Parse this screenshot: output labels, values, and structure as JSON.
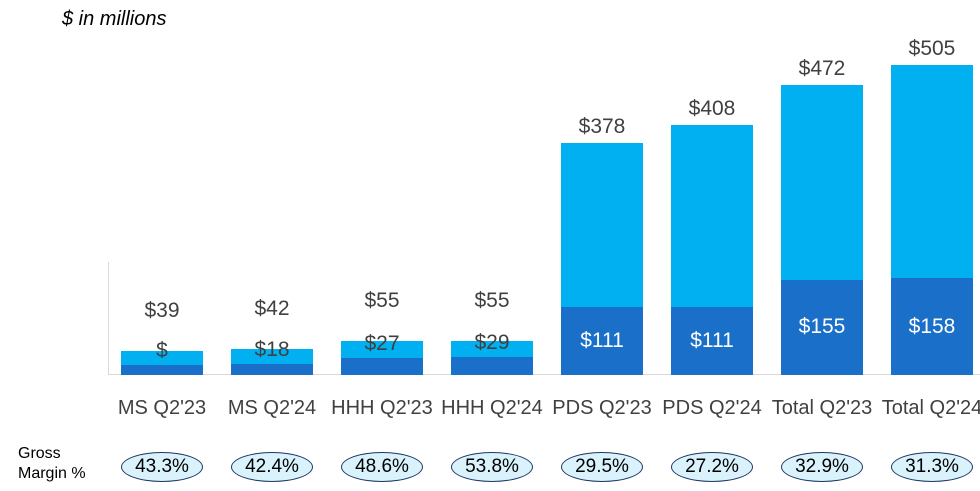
{
  "chart_data": {
    "type": "stacked_bar",
    "subtitle": "$ in millions",
    "categories": [
      "MS Q2'23",
      "MS Q2'24",
      "HHH Q2'23",
      "HHH Q2'24",
      "PDS Q2'23",
      "PDS Q2'24",
      "Total Q2'23",
      "Total Q2'24"
    ],
    "series": [
      {
        "color": "#1a6fc9",
        "values": [
          17,
          18,
          27,
          29,
          111,
          111,
          155,
          158
        ],
        "value_labels": [
          "$",
          "$18",
          "$27",
          "$29",
          "$111",
          "$111",
          "$155",
          "$158"
        ]
      },
      {
        "color": "#00b0f0",
        "values": [
          22,
          24,
          28,
          26,
          267,
          297,
          317,
          347
        ]
      }
    ],
    "totals": [
      39,
      42,
      55,
      55,
      378,
      408,
      472,
      505
    ],
    "total_labels": [
      "$39",
      "$42",
      "$55",
      "$55",
      "$378",
      "$408",
      "$472",
      "$505"
    ],
    "margin_title": "Gross Margin %",
    "margins": [
      43.3,
      42.4,
      48.6,
      53.8,
      29.5,
      27.2,
      32.9,
      31.3
    ],
    "margin_labels": [
      "43.3%",
      "42.4%",
      "48.6%",
      "53.8%",
      "29.5%",
      "27.2%",
      "32.9%",
      "31.3%"
    ]
  }
}
